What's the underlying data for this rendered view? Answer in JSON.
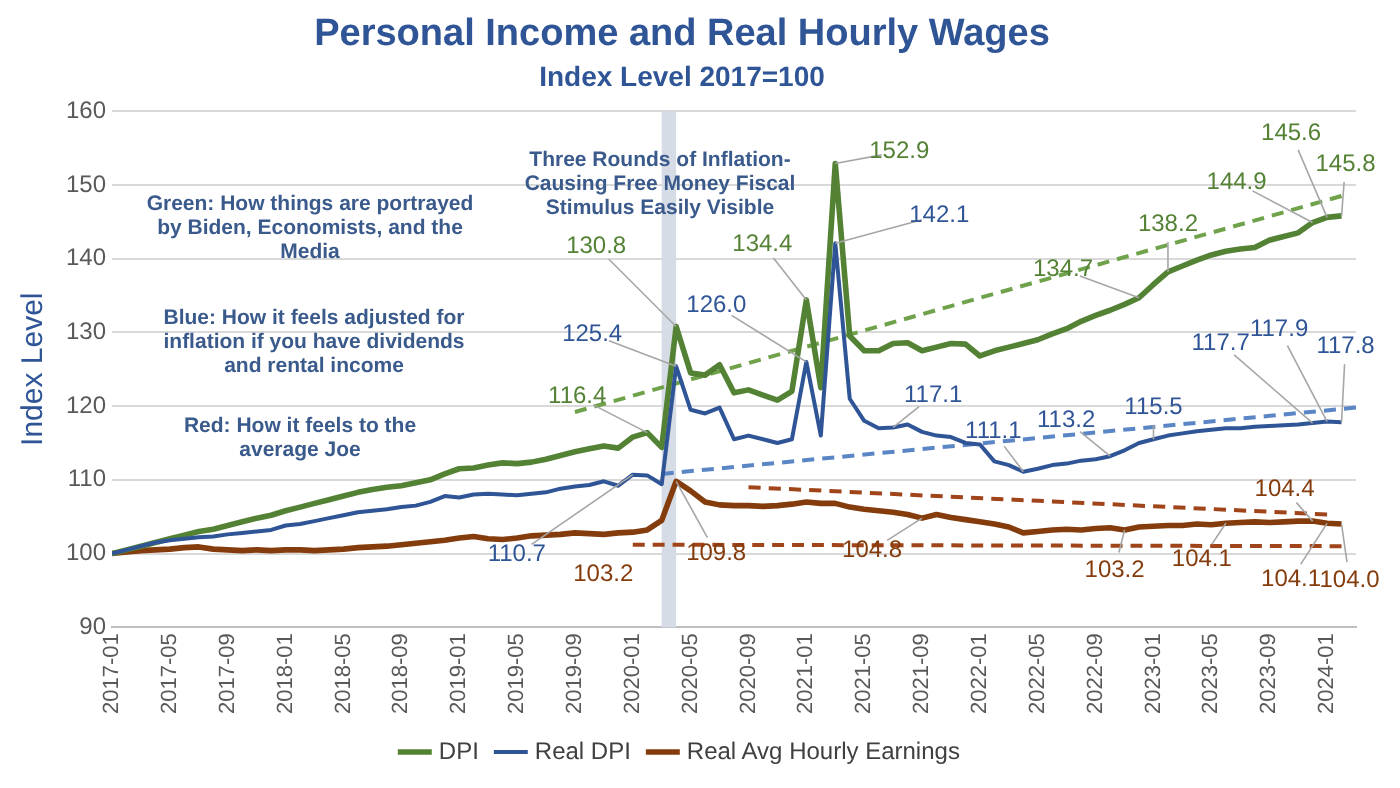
{
  "chart_data": {
    "type": "line",
    "title": "Personal Income and Real Hourly Wages",
    "subtitle": "Index Level 2017=100",
    "ylabel": "Index Level",
    "x": [
      "2017-01",
      "2017-02",
      "2017-03",
      "2017-04",
      "2017-05",
      "2017-06",
      "2017-07",
      "2017-08",
      "2017-09",
      "2017-10",
      "2017-11",
      "2017-12",
      "2018-01",
      "2018-02",
      "2018-03",
      "2018-04",
      "2018-05",
      "2018-06",
      "2018-07",
      "2018-08",
      "2018-09",
      "2018-10",
      "2018-11",
      "2018-12",
      "2019-01",
      "2019-02",
      "2019-03",
      "2019-04",
      "2019-05",
      "2019-06",
      "2019-07",
      "2019-08",
      "2019-09",
      "2019-10",
      "2019-11",
      "2019-12",
      "2020-01",
      "2020-02",
      "2020-03",
      "2020-04",
      "2020-05",
      "2020-06",
      "2020-07",
      "2020-08",
      "2020-09",
      "2020-10",
      "2020-11",
      "2020-12",
      "2021-01",
      "2021-02",
      "2021-03",
      "2021-04",
      "2021-05",
      "2021-06",
      "2021-07",
      "2021-08",
      "2021-09",
      "2021-10",
      "2021-11",
      "2021-12",
      "2022-01",
      "2022-02",
      "2022-03",
      "2022-04",
      "2022-05",
      "2022-06",
      "2022-07",
      "2022-08",
      "2022-09",
      "2022-10",
      "2022-11",
      "2022-12",
      "2023-01",
      "2023-02",
      "2023-03",
      "2023-04",
      "2023-05",
      "2023-06",
      "2023-07",
      "2023-08",
      "2023-09",
      "2023-10",
      "2023-11",
      "2023-12",
      "2024-01",
      "2024-02"
    ],
    "xlim": [
      "2017-01",
      "2024-03"
    ],
    "xticks": [
      "2017-01",
      "2017-05",
      "2017-09",
      "2018-01",
      "2018-05",
      "2018-09",
      "2019-01",
      "2019-05",
      "2019-09",
      "2020-01",
      "2020-05",
      "2020-09",
      "2021-01",
      "2021-05",
      "2021-09",
      "2022-01",
      "2022-05",
      "2022-09",
      "2023-01",
      "2023-05",
      "2023-09",
      "2024-01"
    ],
    "ylim": [
      90,
      160
    ],
    "yticks": [
      90,
      100,
      110,
      120,
      130,
      140,
      150,
      160
    ],
    "grid": "y",
    "legend": "bottom",
    "marker": "none",
    "series": [
      {
        "name": "DPI",
        "color": "#548235",
        "values": [
          100,
          100.5,
          101,
          101.5,
          102,
          102.5,
          103,
          103.3,
          103.8,
          104.3,
          104.8,
          105.2,
          105.8,
          106.3,
          106.8,
          107.3,
          107.8,
          108.3,
          108.7,
          109,
          109.2,
          109.6,
          110,
          110.8,
          111.5,
          111.6,
          112,
          112.3,
          112.2,
          112.4,
          112.8,
          113.3,
          113.8,
          114.2,
          114.6,
          114.3,
          115.8,
          116.4,
          114.4,
          130.8,
          124.5,
          124.2,
          125.6,
          121.8,
          122.2,
          121.5,
          120.8,
          122,
          134.4,
          122.5,
          152.9,
          129.5,
          127.5,
          127.5,
          128.5,
          128.6,
          127.5,
          128,
          128.5,
          128.4,
          126.8,
          127.5,
          128,
          128.5,
          129,
          129.8,
          130.5,
          131.5,
          132.3,
          133,
          133.8,
          134.7,
          136.5,
          138.2,
          139,
          139.8,
          140.5,
          141,
          141.3,
          141.5,
          142.5,
          143,
          143.5,
          144.9,
          145.6,
          145.8
        ],
        "value_labels": [
          null,
          null,
          null,
          null,
          null,
          null,
          null,
          null,
          null,
          null,
          null,
          null,
          null,
          null,
          null,
          null,
          null,
          null,
          null,
          null,
          null,
          null,
          null,
          null,
          null,
          null,
          null,
          null,
          null,
          null,
          null,
          null,
          null,
          null,
          null,
          null,
          null,
          "116.4",
          null,
          "130.8",
          null,
          null,
          null,
          null,
          null,
          null,
          null,
          null,
          "134.4",
          null,
          "152.9",
          null,
          null,
          null,
          null,
          null,
          null,
          null,
          null,
          null,
          null,
          null,
          null,
          null,
          null,
          null,
          null,
          null,
          null,
          null,
          null,
          "134.7",
          null,
          "138.2",
          null,
          null,
          null,
          null,
          null,
          null,
          null,
          null,
          null,
          "144.9",
          "145.6",
          "145.8"
        ]
      },
      {
        "name": "Real DPI",
        "color": "#2f5597",
        "values": [
          100,
          100.5,
          101,
          101.5,
          101.8,
          102,
          102.2,
          102.3,
          102.6,
          102.8,
          103,
          103.2,
          103.8,
          104,
          104.4,
          104.8,
          105.2,
          105.6,
          105.8,
          106,
          106.3,
          106.5,
          107,
          107.8,
          107.6,
          108,
          108.1,
          108,
          107.9,
          108.1,
          108.3,
          108.8,
          109.1,
          109.3,
          109.8,
          109.2,
          110.7,
          110.6,
          109.4,
          125.4,
          119.5,
          119,
          119.8,
          115.5,
          116,
          115.5,
          115,
          115.5,
          126.0,
          116,
          142.1,
          121,
          118,
          117,
          117.1,
          117.5,
          116.5,
          116,
          115.8,
          115,
          114.8,
          112.5,
          112,
          111.1,
          111.5,
          112,
          112.2,
          112.6,
          112.8,
          113.2,
          114,
          115,
          115.5,
          116,
          116.3,
          116.6,
          116.8,
          117,
          117,
          117.2,
          117.3,
          117.4,
          117.5,
          117.7,
          117.9,
          117.8
        ],
        "value_labels": [
          null,
          null,
          null,
          null,
          null,
          null,
          null,
          null,
          null,
          null,
          null,
          null,
          null,
          null,
          null,
          null,
          null,
          null,
          null,
          null,
          null,
          null,
          null,
          null,
          null,
          null,
          null,
          null,
          null,
          null,
          null,
          null,
          null,
          null,
          null,
          null,
          "110.7",
          null,
          null,
          "125.4",
          null,
          null,
          null,
          null,
          null,
          null,
          null,
          null,
          "126.0",
          null,
          "142.1",
          null,
          null,
          null,
          "117.1",
          null,
          null,
          null,
          null,
          null,
          null,
          null,
          null,
          "111.1",
          null,
          null,
          null,
          null,
          null,
          "113.2",
          null,
          null,
          "115.5",
          null,
          null,
          null,
          null,
          null,
          null,
          null,
          null,
          null,
          null,
          "117.7",
          "117.9",
          "117.8"
        ]
      },
      {
        "name": "Real Avg Hourly Earnings",
        "color": "#843c0c",
        "values": [
          100,
          100.2,
          100.4,
          100.5,
          100.6,
          100.8,
          100.9,
          100.6,
          100.5,
          100.4,
          100.5,
          100.4,
          100.5,
          100.5,
          100.4,
          100.5,
          100.6,
          100.8,
          100.9,
          101,
          101.2,
          101.4,
          101.6,
          101.8,
          102.1,
          102.3,
          102,
          101.9,
          102.1,
          102.4,
          102.5,
          102.6,
          102.8,
          102.7,
          102.6,
          102.8,
          102.9,
          103.2,
          104.5,
          109.8,
          108.5,
          107,
          106.6,
          106.5,
          106.5,
          106.4,
          106.5,
          106.7,
          107,
          106.8,
          106.8,
          106.3,
          106,
          105.8,
          105.6,
          105.3,
          104.8,
          105.3,
          104.9,
          104.6,
          104.3,
          104,
          103.6,
          102.8,
          103,
          103.2,
          103.3,
          103.2,
          103.4,
          103.5,
          103.2,
          103.6,
          103.7,
          103.8,
          103.8,
          104,
          103.9,
          104.1,
          104.2,
          104.3,
          104.2,
          104.3,
          104.4,
          104.4,
          104.1,
          104.0
        ],
        "value_labels": [
          null,
          null,
          null,
          null,
          null,
          null,
          null,
          null,
          null,
          null,
          null,
          null,
          null,
          null,
          null,
          null,
          null,
          null,
          null,
          null,
          null,
          null,
          null,
          null,
          null,
          null,
          null,
          null,
          null,
          null,
          null,
          null,
          null,
          null,
          null,
          null,
          null,
          "103.2",
          null,
          "109.8",
          null,
          null,
          null,
          null,
          null,
          null,
          null,
          null,
          null,
          null,
          null,
          null,
          null,
          null,
          null,
          null,
          "104.8",
          null,
          null,
          null,
          null,
          null,
          null,
          null,
          null,
          null,
          null,
          null,
          null,
          null,
          "103.2",
          null,
          null,
          null,
          null,
          null,
          null,
          "104.1",
          null,
          null,
          null,
          null,
          null,
          "104.4",
          "104.1",
          "104.0"
        ]
      },
      {
        "type": "line",
        "line_style": "dashed",
        "color": "#6fa24a",
        "x": [
          "2019-09",
          "2024-02"
        ],
        "values": [
          119.2,
          148.5
        ]
      },
      {
        "type": "line",
        "line_style": "dashed",
        "color": "#5b86c5",
        "x": [
          "2020-03",
          "2024-03"
        ],
        "values": [
          110.8,
          119.8
        ]
      },
      {
        "type": "line",
        "line_style": "dashed",
        "color": "#a0441a",
        "x": [
          "2020-09",
          "2024-01"
        ],
        "values": [
          109,
          105.3
        ]
      },
      {
        "type": "line",
        "line_style": "dashed",
        "color": "#a0441a",
        "x": [
          "2020-01",
          "2024-02"
        ],
        "values": [
          101.2,
          101
        ]
      }
    ],
    "bands": [
      {
        "axis": "x",
        "from": "2020-03",
        "to": "2020-04",
        "color": "#d6dce5"
      }
    ],
    "annotations": [
      "Green: How things are portrayed by Biden, Economists, and the Media",
      "Blue: How it feels adjusted for inflation if you have dividends and rental income",
      "Red: How it feels to the average Joe",
      "Three Rounds of Inflation-Causing Free Money Fiscal Stimulus Easily Visible"
    ]
  }
}
